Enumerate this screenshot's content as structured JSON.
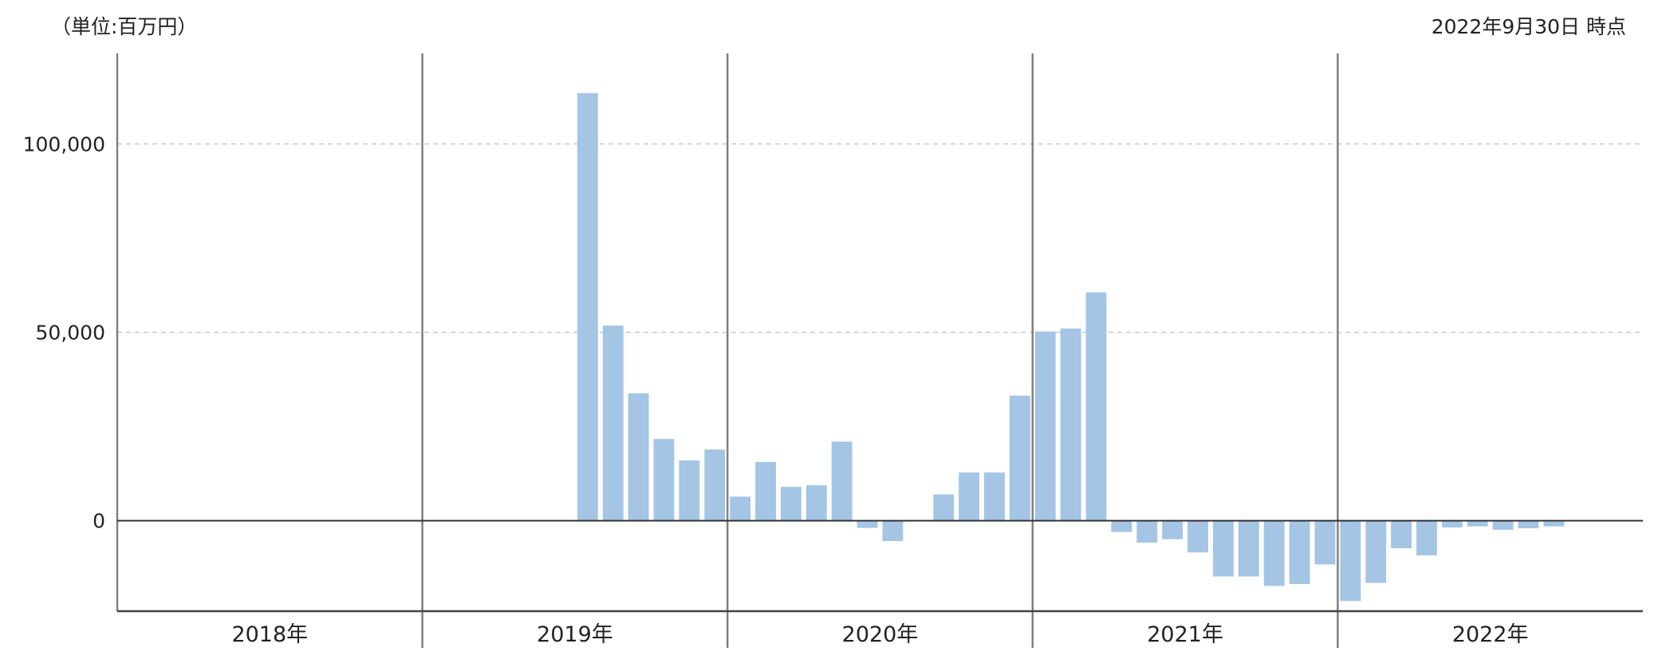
{
  "header": {
    "unit_label": "（単位:百万円）",
    "date_label": "2022年9月30日 時点"
  },
  "chart_data": {
    "type": "bar",
    "ylim": [
      -24000,
      124000
    ],
    "yticks": [
      0,
      50000,
      100000
    ],
    "ytick_labels": [
      "0",
      "50,000",
      "100,000"
    ],
    "grid": true,
    "bar_color": "#a4c5e4",
    "year_labels": [
      "2018年",
      "2019年",
      "2020年",
      "2021年",
      "2022年"
    ],
    "months_per_year": 12,
    "x": [
      "2019-07",
      "2019-08",
      "2019-09",
      "2019-10",
      "2019-11",
      "2019-12",
      "2020-01",
      "2020-02",
      "2020-03",
      "2020-04",
      "2020-05",
      "2020-06",
      "2020-07",
      "2020-08",
      "2020-09",
      "2020-10",
      "2020-11",
      "2020-12",
      "2021-01",
      "2021-02",
      "2021-03",
      "2021-04",
      "2021-05",
      "2021-06",
      "2021-07",
      "2021-08",
      "2021-09",
      "2021-10",
      "2021-11",
      "2021-12",
      "2022-01",
      "2022-02",
      "2022-03",
      "2022-04",
      "2022-05",
      "2022-06",
      "2022-07",
      "2022-08",
      "2022-09"
    ],
    "values": [
      113500,
      51800,
      33800,
      21700,
      16000,
      18900,
      6400,
      15600,
      9000,
      9400,
      21000,
      -1900,
      -5400,
      null,
      7000,
      12800,
      12800,
      33200,
      50200,
      51000,
      60600,
      -3000,
      -5800,
      -4900,
      -8400,
      -14800,
      -14800,
      -17300,
      -16800,
      -11600,
      -21300,
      -16500,
      -7300,
      -9200,
      -1800,
      -1500,
      -2400,
      -2000,
      -1500
    ]
  }
}
